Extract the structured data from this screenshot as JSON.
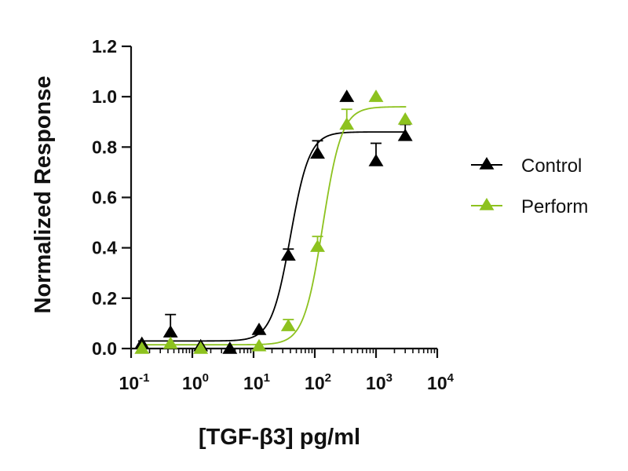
{
  "chart_data": {
    "type": "scatter",
    "xlabel": "[TGF-β3] pg/ml",
    "ylabel": "Normalized Response",
    "x_scale": "log",
    "xlim": [
      0.1,
      10000
    ],
    "ylim": [
      0,
      1.2
    ],
    "x_ticks": [
      {
        "base": "10",
        "exp": "-1",
        "value": 0.1
      },
      {
        "base": "10",
        "exp": "0",
        "value": 1
      },
      {
        "base": "10",
        "exp": "1",
        "value": 10
      },
      {
        "base": "10",
        "exp": "2",
        "value": 100
      },
      {
        "base": "10",
        "exp": "3",
        "value": 1000
      },
      {
        "base": "10",
        "exp": "4",
        "value": 10000
      }
    ],
    "y_ticks": [
      "0.0",
      "0.2",
      "0.4",
      "0.6",
      "0.8",
      "1.0",
      "1.2"
    ],
    "grid": false,
    "legend_position": "right",
    "series": [
      {
        "name": "Control",
        "color": "#000000",
        "x": [
          0.15,
          0.44,
          1.37,
          4.1,
          12.3,
          37,
          111,
          333,
          1000,
          3000
        ],
        "y": [
          0.02,
          0.065,
          0.01,
          0.0,
          0.075,
          0.37,
          0.775,
          1.0,
          0.745,
          0.845
        ],
        "err": [
          0,
          0.07,
          0,
          0,
          0,
          0.025,
          0.05,
          0,
          0.07,
          0.045
        ],
        "fit": {
          "bottom": 0.03,
          "top": 0.86,
          "ec50": 40,
          "hill": 2.8
        }
      },
      {
        "name": "Perform",
        "color": "#8DC21F",
        "x": [
          0.15,
          0.44,
          1.37,
          12.3,
          37,
          111,
          333,
          1000,
          3000
        ],
        "y": [
          0.0,
          0.02,
          0.0,
          0.01,
          0.09,
          0.405,
          0.89,
          1.0,
          0.91
        ],
        "err": [
          0,
          0,
          0,
          0,
          0.025,
          0.04,
          0.06,
          0,
          0
        ],
        "fit": {
          "bottom": 0.015,
          "top": 0.96,
          "ec50": 135,
          "hill": 2.8
        }
      }
    ]
  }
}
